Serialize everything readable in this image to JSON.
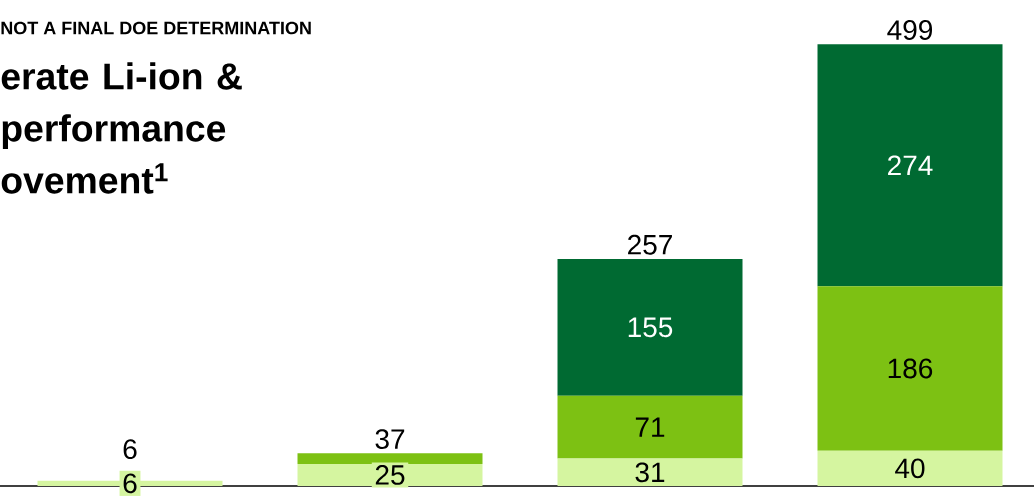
{
  "chart_data": {
    "type": "bar",
    "stacked": true,
    "subtitle": "NOT A FINAL DOE DETERMINATION",
    "title": "erate Li-ion & performance ovement$^{1}$",
    "categories": [
      null,
      null,
      null,
      null
    ],
    "series": [
      {
        "color": "#d5f5a0",
        "values": [
          6,
          25,
          31,
          40
        ],
        "value_labels": [
          "6",
          "25",
          "31",
          "40"
        ]
      },
      {
        "color": "#7dc113",
        "values": [
          0,
          12,
          71,
          186
        ],
        "value_labels": [
          null,
          null,
          "71",
          "186"
        ]
      },
      {
        "color": "#006a32",
        "values": [
          0,
          0,
          155,
          274
        ],
        "value_labels": [
          null,
          null,
          "155",
          "274"
        ]
      }
    ],
    "totals": [
      "6",
      "37",
      "257",
      "499"
    ]
  }
}
